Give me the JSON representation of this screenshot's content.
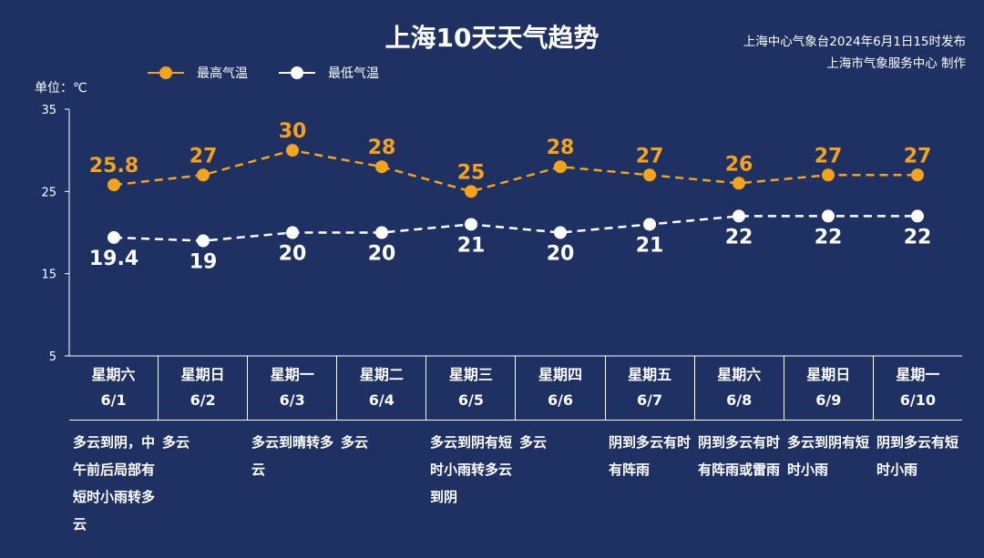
{
  "header": {
    "title": "上海10天天气趋势",
    "source_line1": "上海中心气象台2024年6月1日15时发布",
    "source_line2": "上海市气象服务中心 制作"
  },
  "legend": {
    "high_label": "最高气温",
    "low_label": "最低气温",
    "unit_label": "单位：℃"
  },
  "colors": {
    "background": "#1f3163",
    "high": "#f5a31a",
    "low": "#ffffff"
  },
  "chart_data": {
    "type": "line",
    "title": "上海10天天气趋势",
    "ylabel": "单位：℃",
    "ylim": [
      5,
      35
    ],
    "yticks": [
      "35",
      "25",
      "15",
      "5"
    ],
    "categories": [
      "6/1",
      "6/2",
      "6/3",
      "6/4",
      "6/5",
      "6/6",
      "6/7",
      "6/8",
      "6/9",
      "6/10"
    ],
    "series": [
      {
        "name": "最高气温",
        "values": [
          25.8,
          27,
          30,
          28,
          25,
          28,
          27,
          26,
          27,
          27
        ],
        "labels": [
          "25.8",
          "27",
          "30",
          "28",
          "25",
          "28",
          "27",
          "26",
          "27",
          "27"
        ]
      },
      {
        "name": "最低气温",
        "values": [
          19.4,
          19,
          20,
          20,
          21,
          20,
          21,
          22,
          22,
          22
        ],
        "labels": [
          "19.4",
          "19",
          "20",
          "20",
          "21",
          "20",
          "21",
          "22",
          "22",
          "22"
        ]
      }
    ]
  },
  "days": [
    {
      "weekday": "星期六",
      "date": "6/1",
      "weather": "多云到阴，中午前后局部有短时小雨转多云"
    },
    {
      "weekday": "星期日",
      "date": "6/2",
      "weather": "多云"
    },
    {
      "weekday": "星期一",
      "date": "6/3",
      "weather": "多云到晴转多云"
    },
    {
      "weekday": "星期二",
      "date": "6/4",
      "weather": "多云"
    },
    {
      "weekday": "星期三",
      "date": "6/5",
      "weather": "多云到阴有短时小雨转多云到阴"
    },
    {
      "weekday": "星期四",
      "date": "6/6",
      "weather": "多云"
    },
    {
      "weekday": "星期五",
      "date": "6/7",
      "weather": "阴到多云有时有阵雨"
    },
    {
      "weekday": "星期六",
      "date": "6/8",
      "weather": "阴到多云有时有阵雨或雷雨"
    },
    {
      "weekday": "星期日",
      "date": "6/9",
      "weather": "多云到阴有短时小雨"
    },
    {
      "weekday": "星期一",
      "date": "6/10",
      "weather": "阴到多云有短时小雨"
    }
  ]
}
